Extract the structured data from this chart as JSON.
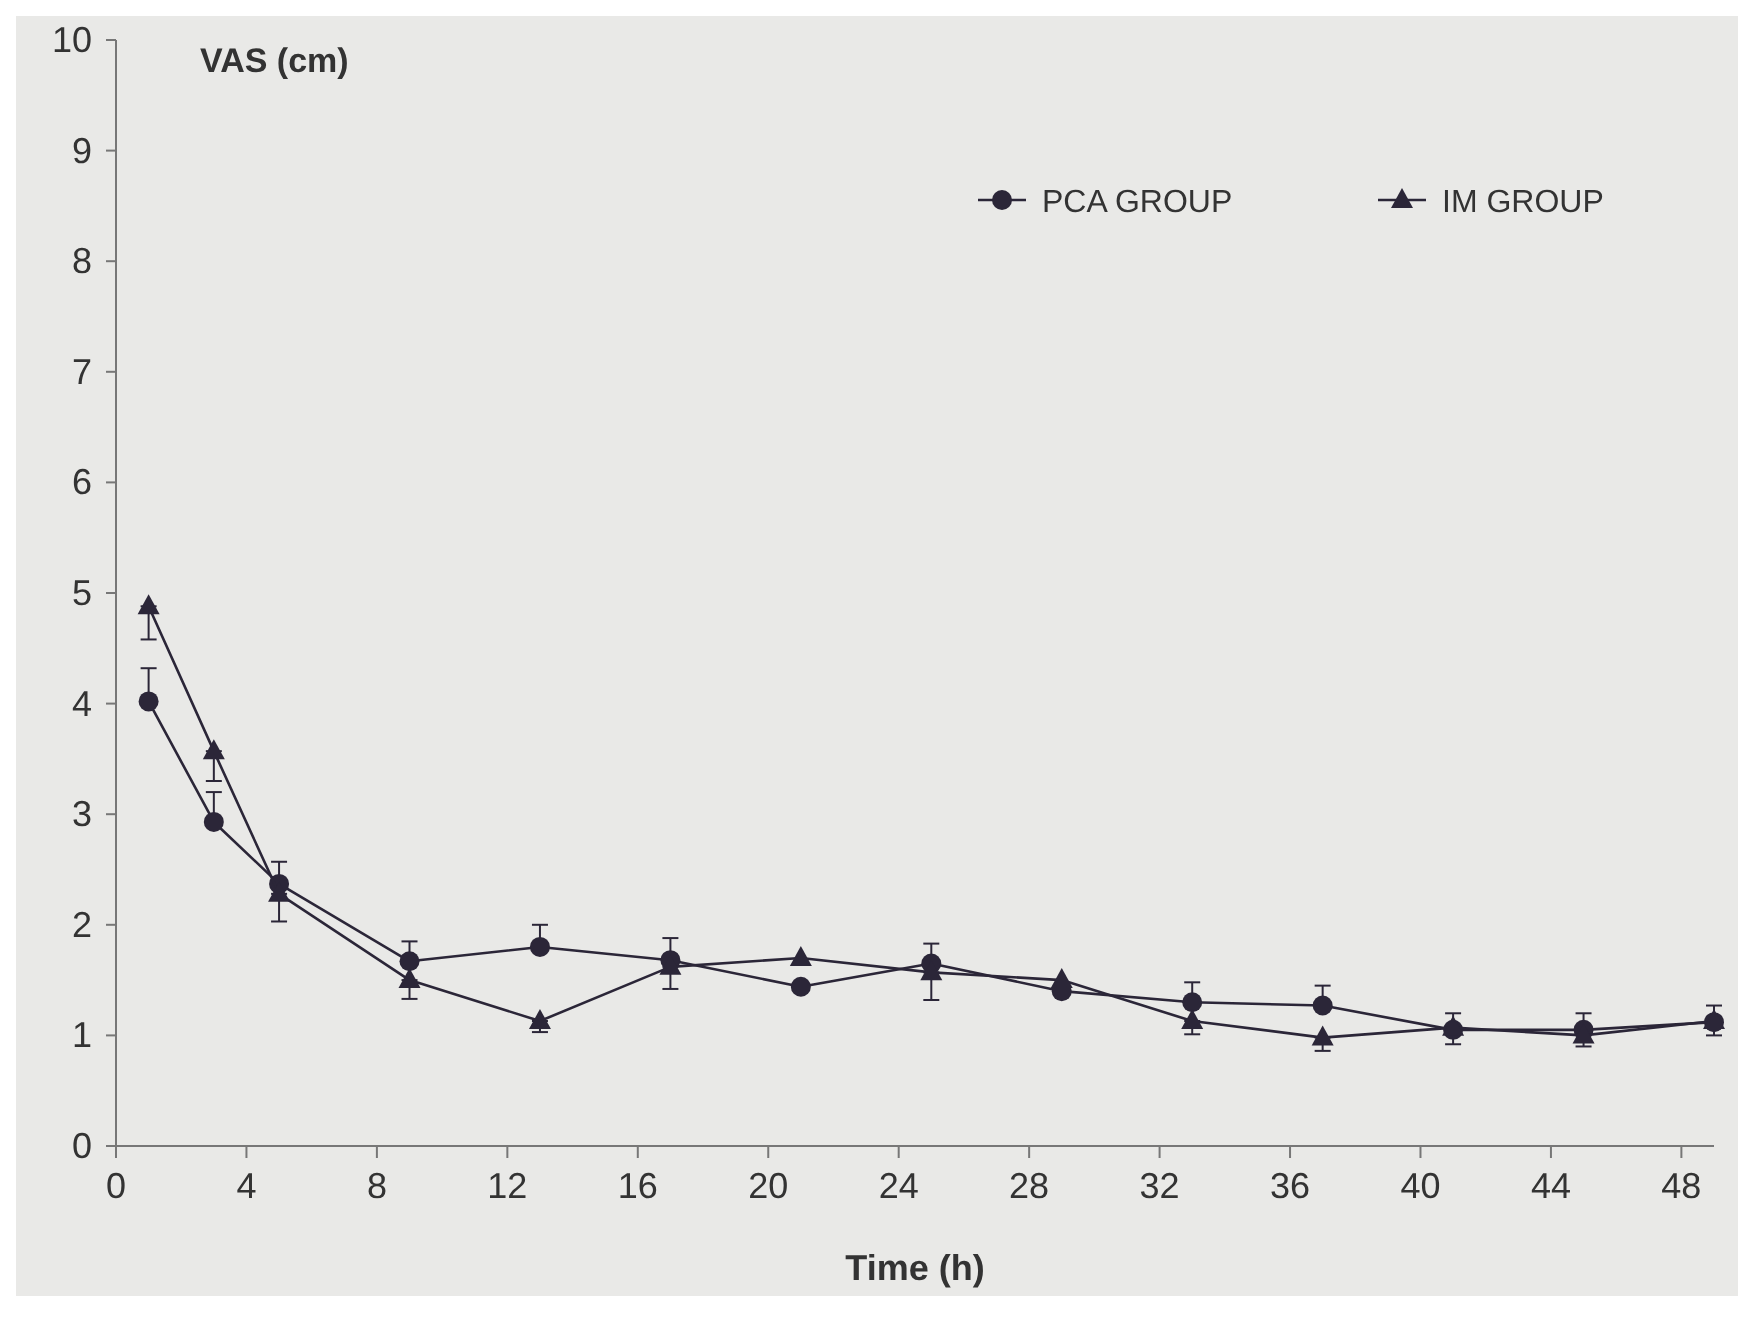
{
  "chart_data": {
    "type": "line",
    "xlabel": "Time (h)",
    "ylabel": "VAS (cm)",
    "xlim": [
      0,
      49
    ],
    "xticks": [
      0,
      4,
      8,
      12,
      16,
      20,
      24,
      28,
      32,
      36,
      40,
      44,
      48
    ],
    "ylim": [
      0,
      10
    ],
    "yticks": [
      0,
      1,
      2,
      3,
      4,
      5,
      6,
      7,
      8,
      9,
      10
    ],
    "grid": false,
    "legend": "top right",
    "x": [
      1,
      3,
      5,
      9,
      13,
      17,
      21,
      25,
      29,
      33,
      37,
      41,
      45,
      49
    ],
    "series": [
      {
        "name": "PCA GROUP",
        "color": "#2b2638",
        "marker": "circle",
        "values": [
          4.02,
          2.93,
          2.37,
          1.67,
          1.8,
          1.68,
          1.44,
          1.65,
          1.4,
          1.3,
          1.27,
          1.05,
          1.05,
          1.12
        ],
        "errors": [
          [
            4.02,
            4.32
          ],
          [
            2.93,
            3.2
          ],
          [
            2.37,
            2.57
          ],
          [
            1.67,
            1.85
          ],
          [
            1.8,
            2.0
          ],
          [
            1.68,
            1.88
          ],
          null,
          [
            1.65,
            1.83
          ],
          null,
          [
            1.3,
            1.48
          ],
          [
            1.27,
            1.45
          ],
          [
            1.05,
            1.2
          ],
          [
            1.05,
            1.2
          ],
          [
            1.12,
            1.27
          ]
        ]
      },
      {
        "name": "IM GROUP",
        "color": "#2b2638",
        "marker": "triangle",
        "values": [
          4.88,
          3.57,
          2.28,
          1.5,
          1.13,
          1.62,
          1.7,
          1.57,
          1.5,
          1.13,
          0.98,
          1.07,
          1.0,
          1.13
        ],
        "errors": [
          [
            4.58,
            4.88
          ],
          [
            3.3,
            3.57
          ],
          [
            2.03,
            2.28
          ],
          [
            1.33,
            1.5
          ],
          [
            1.03,
            1.13
          ],
          [
            1.42,
            1.62
          ],
          null,
          [
            1.32,
            1.57
          ],
          null,
          [
            1.01,
            1.13
          ],
          [
            0.86,
            0.98
          ],
          [
            0.92,
            1.07
          ],
          [
            0.9,
            1.0
          ],
          [
            1.0,
            1.13
          ]
        ]
      }
    ]
  }
}
